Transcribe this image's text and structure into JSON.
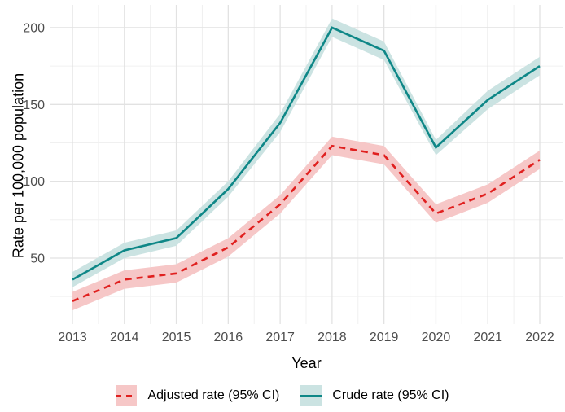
{
  "figure": {
    "ylabel": "Rate per 100,000 population",
    "xlabel": "Year"
  },
  "legend": {
    "position": "bottom",
    "items": [
      {
        "label": "Adjusted rate (95% CI)",
        "line_color": "#E0201F",
        "fill_color": "#F6C7C7",
        "dashed": true
      },
      {
        "label": "Crude rate (95% CI)",
        "line_color": "#0E8787",
        "fill_color": "#CBE3E2",
        "dashed": false
      }
    ]
  },
  "colors": {
    "background": "#FFFFFF",
    "grid_major": "#E2E2E2",
    "grid_minor": "#F0F0F0",
    "tick_label": "#4D4D4D",
    "axis_title": "#000000"
  },
  "chart_data": {
    "type": "line",
    "title": "",
    "xlabel": "Year",
    "ylabel": "Rate per 100,000 population",
    "x": [
      2013,
      2014,
      2015,
      2016,
      2017,
      2018,
      2019,
      2020,
      2021,
      2022
    ],
    "x_tick_labels": [
      "2013",
      "2014",
      "2015",
      "2016",
      "2017",
      "2018",
      "2019",
      "2020",
      "2021",
      "2022"
    ],
    "y_ticks": [
      50,
      100,
      150,
      200
    ],
    "y_minor_ticks": [
      25,
      75,
      125,
      175
    ],
    "ylim": [
      7,
      215
    ],
    "grid": "major+minor",
    "legend_position": "bottom",
    "series": [
      {
        "name": "Adjusted rate (95% CI)",
        "style": "dashed",
        "color": "#E0201F",
        "ribbon_color": "#F6C7C7",
        "values": [
          22,
          36,
          40,
          57,
          85,
          123,
          117,
          79,
          92,
          114
        ],
        "ci_lower": [
          16,
          30,
          34,
          51,
          79,
          117,
          111,
          73,
          86,
          108
        ],
        "ci_upper": [
          28,
          42,
          46,
          63,
          91,
          129,
          123,
          85,
          98,
          120
        ]
      },
      {
        "name": "Crude rate (95% CI)",
        "style": "solid",
        "color": "#0E8787",
        "ribbon_color": "#CBE3E2",
        "values": [
          36,
          55,
          63,
          95,
          138,
          200,
          185,
          122,
          153,
          175
        ],
        "ci_lower": [
          31,
          50,
          58,
          90,
          132,
          194,
          179,
          117,
          147,
          169
        ],
        "ci_upper": [
          41,
          60,
          68,
          100,
          144,
          206,
          191,
          127,
          159,
          181
        ]
      }
    ]
  }
}
